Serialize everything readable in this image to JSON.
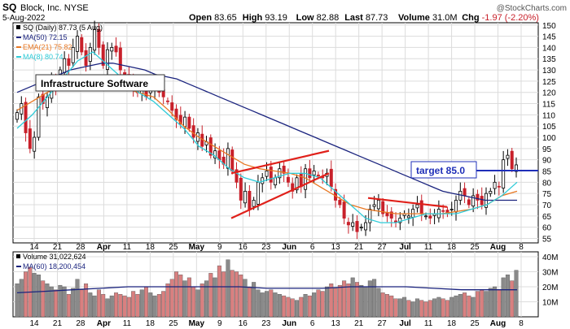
{
  "header": {
    "symbol": "SQ",
    "company": "Block, Inc.  NYSE",
    "date": "5-Aug-2022",
    "watermark": "@StockCharts.com",
    "quote": [
      {
        "label": "Open",
        "value": "83.65"
      },
      {
        "label": "High",
        "value": "93.19"
      },
      {
        "label": "Low",
        "value": "82.88"
      },
      {
        "label": "Last",
        "value": "87.73"
      },
      {
        "label": "Volume",
        "value": "31.0M"
      },
      {
        "label": "Chg",
        "value": "-1.97 (-2.20%)"
      }
    ]
  },
  "legend": {
    "price": "SQ (Daily) 87.73 (5 Aug)",
    "ma50": "MA(50) 72.15",
    "ema21": "EMA(21) 75.82",
    "ma8": "MA(8) 80.74",
    "volume": "Volume 31,022,624",
    "vol_ma60": "MA(60) 18,200,454"
  },
  "annotations": {
    "infrastructure": "Infrastructure Software",
    "target": "target 85.0"
  },
  "colors": {
    "up": "#ffffff",
    "down": "#c8202a",
    "candle_outline": "#000000",
    "ma50": "#1a237e",
    "ema21": "#e87722",
    "ma8": "#2ecbd8",
    "trendline": "#e0201a",
    "target_line": "#1f2fb8",
    "vol_up": "#8a8a8a",
    "vol_down": "#d98080",
    "grid": "#dcdcdc"
  },
  "chart_data": [
    {
      "type": "candlestick",
      "title": "SQ Block, Inc. NYSE",
      "x_tick_labels": [
        "14",
        "21",
        "28",
        "Apr",
        "11",
        "18",
        "25",
        "May",
        "9",
        "16",
        "23",
        "Jun",
        "6",
        "13",
        "21",
        "27",
        "Jul",
        "11",
        "18",
        "25",
        "Aug",
        "8"
      ],
      "ylim": [
        53,
        151
      ],
      "y_ticks": [
        55,
        60,
        65,
        70,
        75,
        80,
        85,
        90,
        95,
        100,
        105,
        110,
        115,
        120,
        125,
        130,
        135,
        140,
        145,
        150
      ],
      "target": 85.0,
      "series": [
        {
          "name": "SQ (Daily)",
          "closes": [
            111,
            115,
            102,
            95,
            100,
            118,
            115,
            118,
            125,
            122,
            130,
            135,
            132,
            140,
            145,
            138,
            132,
            140,
            148,
            140,
            132,
            139,
            140,
            138,
            130,
            128,
            125,
            122,
            120,
            121,
            118,
            122,
            124,
            120,
            118,
            116,
            112,
            108,
            106,
            109,
            104,
            100,
            102,
            96,
            98,
            92,
            94,
            90,
            88,
            95,
            85,
            80,
            72,
            76,
            68,
            72,
            80,
            82,
            85,
            80,
            82,
            86,
            84,
            80,
            76,
            82,
            78,
            86,
            82,
            85,
            83,
            82,
            84,
            78,
            72,
            70,
            64,
            61,
            62,
            58,
            60,
            62,
            68,
            70,
            72,
            66,
            65,
            64,
            62,
            64,
            66,
            65,
            68,
            70,
            66,
            65,
            64,
            66,
            68,
            67,
            66,
            68,
            72,
            76,
            74,
            70,
            74,
            72,
            70,
            75,
            76,
            80,
            78,
            90,
            92,
            86,
            87.73
          ]
        },
        {
          "name": "MA(50)",
          "values": [
            120,
            122,
            124,
            126,
            128,
            130,
            131,
            132,
            133,
            133,
            132,
            131,
            130,
            128,
            127,
            126,
            124,
            122,
            120,
            118,
            116,
            114,
            112,
            110,
            108,
            106,
            104,
            102,
            100,
            98,
            96,
            94,
            92,
            90,
            88,
            86,
            84,
            82,
            80,
            78,
            76,
            75,
            74,
            73,
            72,
            72,
            72,
            72
          ]
        },
        {
          "name": "EMA(21)",
          "values": [
            112,
            116,
            120,
            124,
            126,
            126,
            124,
            122,
            120,
            118,
            112,
            105,
            100,
            96,
            92,
            88,
            86,
            85,
            84,
            82,
            78,
            74,
            70,
            68,
            67,
            66,
            66,
            66,
            66,
            67,
            68,
            70,
            74,
            76
          ]
        },
        {
          "name": "MA(8)",
          "values": [
            104,
            110,
            118,
            126,
            134,
            138,
            132,
            126,
            120,
            116,
            110,
            104,
            96,
            92,
            86,
            82,
            80,
            82,
            84,
            84,
            82,
            76,
            70,
            64,
            62,
            62,
            64,
            66,
            66,
            66,
            68,
            70,
            74,
            80
          ]
        }
      ],
      "trendlines": [
        {
          "from": [
            "May 12",
            64
          ],
          "to": [
            "Jun 8",
            84
          ]
        },
        {
          "from": [
            "May 12",
            84
          ],
          "to": [
            "Jun 8",
            94
          ]
        },
        {
          "from": [
            "Jun 22",
            73
          ],
          "to": [
            "Jul 20",
            69
          ]
        }
      ]
    },
    {
      "type": "bar",
      "title": "Volume",
      "y_tick_labels": [
        "10M",
        "20M",
        "30M",
        "40M"
      ],
      "ylim": [
        0,
        40
      ],
      "unit": "M",
      "series": [
        {
          "name": "Volume",
          "values": [
            22,
            25,
            30,
            33,
            29,
            28,
            24,
            22,
            20,
            18,
            21,
            20,
            15,
            19,
            25,
            18,
            22,
            16,
            14,
            18,
            15,
            12,
            14,
            16,
            15,
            14,
            13,
            17,
            15,
            18,
            20,
            16,
            14,
            15,
            17,
            22,
            25,
            30,
            28,
            24,
            26,
            20,
            18,
            22,
            24,
            29,
            26,
            34,
            30,
            38,
            31,
            30,
            28,
            25,
            20,
            23,
            18,
            16,
            17,
            18,
            16,
            15,
            14,
            13,
            12,
            11,
            13,
            15,
            14,
            16,
            18,
            17,
            20,
            22,
            19,
            21,
            24,
            22,
            26,
            23,
            21,
            20,
            24,
            25,
            19,
            16,
            15,
            14,
            12,
            12,
            13,
            11,
            10,
            12,
            11,
            10,
            11,
            12,
            13,
            12,
            11,
            13,
            14,
            15,
            16,
            14,
            13,
            17,
            18,
            17,
            19,
            20,
            18,
            26,
            28,
            24,
            31
          ]
        },
        {
          "name": "MA(60)",
          "values": [
            16,
            17,
            18,
            19,
            20,
            20,
            20,
            20,
            20,
            19,
            19,
            19,
            20,
            20,
            20,
            19,
            18,
            18,
            18
          ]
        }
      ]
    }
  ]
}
